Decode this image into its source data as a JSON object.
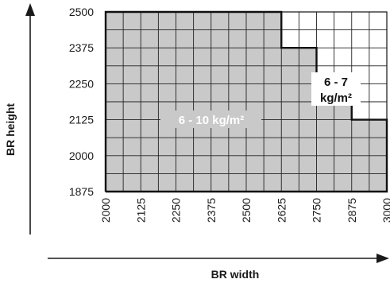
{
  "x_axis": {
    "label": "BR width",
    "ticks": [
      "2000",
      "2125",
      "2250",
      "2375",
      "2500",
      "2625",
      "2750",
      "2875",
      "3000"
    ]
  },
  "y_axis": {
    "label": "BR height",
    "ticks": [
      "2500",
      "2375",
      "2250",
      "2125",
      "2000",
      "1875"
    ]
  },
  "zones": {
    "heavy": {
      "label": "6 - 10 kg/m²",
      "fill": "#c9c9c9",
      "text_color": "#ffffff"
    },
    "light": {
      "label_line1": "6 - 7",
      "label_line2": "kg/m²",
      "text_color": "#111111"
    }
  },
  "chart_data": {
    "type": "step-region",
    "x": [
      2000,
      2125,
      2250,
      2375,
      2500,
      2625,
      2750,
      2875,
      3000
    ],
    "heavy_zone_max_height": [
      2500,
      2500,
      2500,
      2500,
      2500,
      2375,
      2250,
      2125,
      2125
    ],
    "xlim": [
      2000,
      3000
    ],
    "ylim": [
      1875,
      2500
    ]
  }
}
